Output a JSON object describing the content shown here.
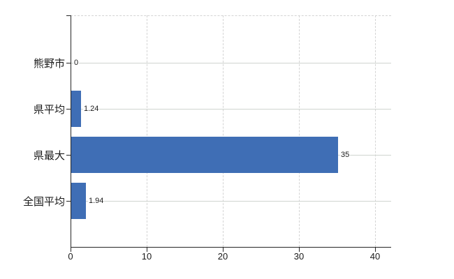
{
  "chart_data": {
    "type": "bar",
    "orientation": "horizontal",
    "title": "",
    "xlabel": "",
    "ylabel": "",
    "categories": [
      "熊野市",
      "県平均",
      "県最大",
      "全国平均"
    ],
    "values": [
      0,
      1.24,
      35,
      1.94
    ],
    "value_labels": [
      "0",
      "1.24",
      "35",
      "1.94"
    ],
    "x_ticks": [
      "0",
      "10",
      "20",
      "30",
      "40"
    ],
    "x_tick_values": [
      0,
      10,
      20,
      30,
      40
    ],
    "xlim": [
      0,
      42
    ],
    "grid": true,
    "legend": false,
    "colors": {
      "bar": "#3F6EB5",
      "grid_dashed": "#D4D4D4",
      "row_line": "#CFD4CF",
      "axis": "#262626",
      "text": "#1A1A1A",
      "background": "#FFFFFF"
    }
  }
}
